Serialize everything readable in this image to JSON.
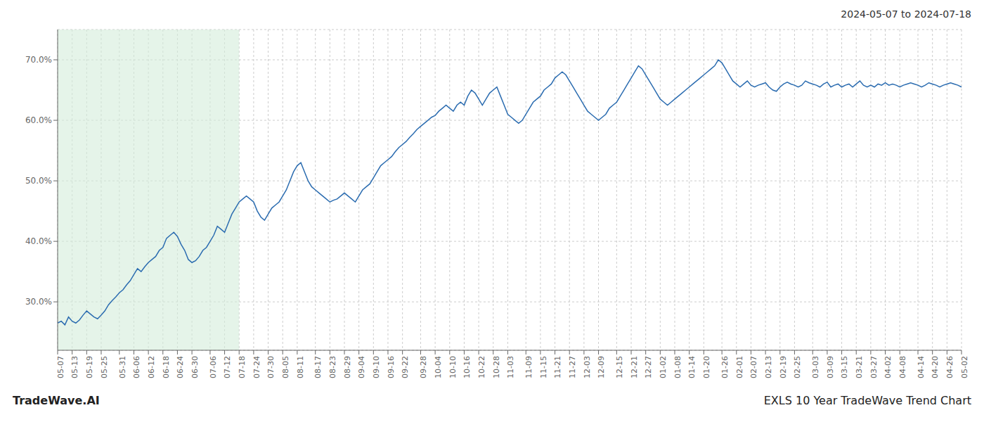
{
  "chart_data": {
    "type": "line",
    "title": "EXLS 10 Year TradeWave Trend Chart",
    "subtitle": "2024-05-07 to 2024-07-18",
    "annotations": [
      "TradeWave.AI"
    ],
    "color": "#2b6cb0",
    "grid": true,
    "shade": {
      "start": "05-07",
      "end": "07-18",
      "color": "#d4edda"
    },
    "ylim": [
      22,
      75
    ],
    "yticks": [
      {
        "value": 30.0,
        "label": "30.0%"
      },
      {
        "value": 40.0,
        "label": "40.0%"
      },
      {
        "value": 50.0,
        "label": "50.0%"
      },
      {
        "value": 60.0,
        "label": "60.0%"
      },
      {
        "value": 70.0,
        "label": "70.0%"
      }
    ],
    "categories": [
      "05-07",
      null,
      null,
      null,
      "05-13",
      null,
      null,
      null,
      "05-19",
      null,
      null,
      null,
      "05-25",
      null,
      null,
      null,
      null,
      "05-31",
      null,
      null,
      null,
      "06-06",
      null,
      null,
      null,
      "06-12",
      null,
      null,
      null,
      "06-18",
      null,
      null,
      null,
      "06-24",
      null,
      null,
      null,
      "06-30",
      null,
      null,
      null,
      null,
      "07-06",
      null,
      null,
      null,
      "07-12",
      null,
      null,
      null,
      "07-18",
      null,
      null,
      null,
      "07-24",
      null,
      null,
      null,
      "07-30",
      null,
      null,
      null,
      "08-05",
      null,
      null,
      null,
      "08-11",
      null,
      null,
      null,
      null,
      "08-17",
      null,
      null,
      null,
      "08-23",
      null,
      null,
      null,
      "08-29",
      null,
      null,
      null,
      "09-04",
      null,
      null,
      null,
      "09-10",
      null,
      null,
      null,
      "09-16",
      null,
      null,
      null,
      "09-22",
      null,
      null,
      null,
      null,
      "09-28",
      null,
      null,
      null,
      "10-04",
      null,
      null,
      null,
      "10-10",
      null,
      null,
      null,
      "10-16",
      null,
      null,
      null,
      "10-22",
      null,
      null,
      null,
      "10-28",
      null,
      null,
      null,
      "11-03",
      null,
      null,
      null,
      null,
      "11-09",
      null,
      null,
      null,
      "11-15",
      null,
      null,
      null,
      "11-21",
      null,
      null,
      null,
      "11-27",
      null,
      null,
      null,
      "12-03",
      null,
      null,
      null,
      "12-09",
      null,
      null,
      null,
      null,
      "12-15",
      null,
      null,
      null,
      "12-21",
      null,
      null,
      null,
      "12-27",
      null,
      null,
      null,
      "01-02",
      null,
      null,
      null,
      "01-08",
      null,
      null,
      null,
      "01-14",
      null,
      null,
      null,
      "01-20",
      null,
      null,
      null,
      null,
      "01-26",
      null,
      null,
      null,
      "02-01",
      null,
      null,
      null,
      "02-07",
      null,
      null,
      null,
      "02-13",
      null,
      null,
      null,
      "02-19",
      null,
      null,
      null,
      "02-25",
      null,
      null,
      null,
      null,
      "03-03",
      null,
      null,
      null,
      "03-09",
      null,
      null,
      null,
      "03-15",
      null,
      null,
      null,
      "03-21",
      null,
      null,
      null,
      "03-27",
      null,
      null,
      null,
      "04-02",
      null,
      null,
      null,
      "04-08",
      null,
      null,
      null,
      null,
      "04-14",
      null,
      null,
      null,
      "04-20",
      null,
      null,
      null,
      "04-26",
      null,
      null,
      null,
      "05-02"
    ],
    "values": [
      26.5,
      26.8,
      26.2,
      27.5,
      26.8,
      26.5,
      27.0,
      27.8,
      28.5,
      28.0,
      27.5,
      27.2,
      27.8,
      28.5,
      29.5,
      30.2,
      30.8,
      31.5,
      32.0,
      32.8,
      33.5,
      34.5,
      35.5,
      35.0,
      35.8,
      36.5,
      37.0,
      37.5,
      38.5,
      39.0,
      40.5,
      41.0,
      41.5,
      40.8,
      39.5,
      38.5,
      37.0,
      36.5,
      36.8,
      37.5,
      38.5,
      39.0,
      40.0,
      41.0,
      42.5,
      42.0,
      41.5,
      43.0,
      44.5,
      45.5,
      46.5,
      47.0,
      47.5,
      47.0,
      46.5,
      45.0,
      44.0,
      43.5,
      44.5,
      45.5,
      46.0,
      46.5,
      47.5,
      48.5,
      50.0,
      51.5,
      52.5,
      53.0,
      51.5,
      50.0,
      49.0,
      48.5,
      48.0,
      47.5,
      47.0,
      46.5,
      46.8,
      47.0,
      47.5,
      48.0,
      47.5,
      47.0,
      46.5,
      47.5,
      48.5,
      49.0,
      49.5,
      50.5,
      51.5,
      52.5,
      53.0,
      53.5,
      54.0,
      54.8,
      55.5,
      56.0,
      56.5,
      57.2,
      57.8,
      58.5,
      59.0,
      59.5,
      60.0,
      60.5,
      60.8,
      61.5,
      62.0,
      62.5,
      62.0,
      61.5,
      62.5,
      63.0,
      62.5,
      64.0,
      65.0,
      64.5,
      63.5,
      62.5,
      63.5,
      64.5,
      65.0,
      65.5,
      64.0,
      62.5,
      61.0,
      60.5,
      60.0,
      59.5,
      60.0,
      61.0,
      62.0,
      63.0,
      63.5,
      64.0,
      65.0,
      65.5,
      66.0,
      67.0,
      67.5,
      68.0,
      67.5,
      66.5,
      65.5,
      64.5,
      63.5,
      62.5,
      61.5,
      61.0,
      60.5,
      60.0,
      60.5,
      61.0,
      62.0,
      62.5,
      63.0,
      64.0,
      65.0,
      66.0,
      67.0,
      68.0,
      69.0,
      68.5,
      67.5,
      66.5,
      65.5,
      64.5,
      63.5,
      63.0,
      62.5,
      63.0,
      63.5,
      64.0,
      64.5,
      65.0,
      65.5,
      66.0,
      66.5,
      67.0,
      67.5,
      68.0,
      68.5,
      69.0,
      70.0,
      69.5,
      68.5,
      67.5,
      66.5,
      66.0,
      65.5,
      66.0,
      66.5,
      65.8,
      65.5,
      65.8,
      66.0,
      66.2,
      65.5,
      65.0,
      64.8,
      65.5,
      66.0,
      66.3,
      66.0,
      65.8,
      65.5,
      65.8,
      66.5,
      66.2,
      66.0,
      65.8,
      65.5,
      66.0,
      66.3,
      65.5,
      65.8,
      66.0,
      65.5,
      65.8,
      66.0,
      65.5,
      66.0,
      66.5,
      65.8,
      65.5,
      65.8,
      65.5,
      66.0,
      65.8,
      66.2,
      65.8,
      66.0,
      65.8,
      65.5,
      65.8,
      66.0,
      66.2,
      66.0,
      65.8,
      65.5,
      65.8,
      66.2,
      66.0,
      65.8,
      65.5,
      65.8,
      66.0,
      66.2,
      66.0,
      65.8,
      65.5
    ]
  }
}
